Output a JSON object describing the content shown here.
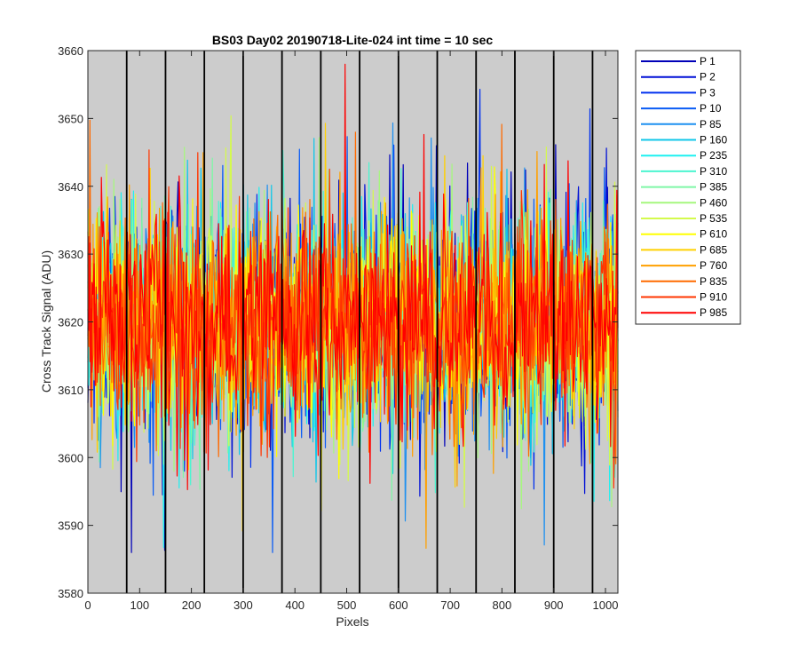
{
  "chart_data": {
    "type": "line",
    "title": "BS03 Day02 20190718-Lite-024 int time = 10 sec",
    "xlabel": "Pixels",
    "ylabel": "Cross Track Signal (ADU)",
    "xlim": [
      0,
      1024
    ],
    "ylim": [
      3580,
      3660
    ],
    "xticks": [
      0,
      100,
      200,
      300,
      400,
      500,
      600,
      700,
      800,
      900,
      1000
    ],
    "yticks": [
      3580,
      3590,
      3600,
      3610,
      3620,
      3630,
      3640,
      3650,
      3660
    ],
    "xtick_labels": [
      "0",
      "100",
      "200",
      "300",
      "400",
      "500",
      "600",
      "700",
      "800",
      "900",
      "1000"
    ],
    "ytick_labels": [
      "3580",
      "3590",
      "3600",
      "3610",
      "3620",
      "3630",
      "3640",
      "3650",
      "3660"
    ],
    "vertical_reference_lines_x": [
      75,
      150,
      225,
      300,
      375,
      450,
      525,
      600,
      675,
      750,
      825,
      900,
      975
    ],
    "background_color": "#cccccc",
    "legend_position": "outside-top-right",
    "signal_center": 3620,
    "signal_spread_typical": 8,
    "signal_extremes": [
      3586,
      3658
    ],
    "series": [
      {
        "name": "P 1",
        "color": "#0000b8"
      },
      {
        "name": "P 2",
        "color": "#0010d6"
      },
      {
        "name": "P 3",
        "color": "#0030ef"
      },
      {
        "name": "P 10",
        "color": "#0a5cf5"
      },
      {
        "name": "P 85",
        "color": "#1e90f0"
      },
      {
        "name": "P 160",
        "color": "#11c7e8"
      },
      {
        "name": "P 235",
        "color": "#1ef0f0"
      },
      {
        "name": "P 310",
        "color": "#4cf5d0"
      },
      {
        "name": "P 385",
        "color": "#7ff7a6"
      },
      {
        "name": "P 460",
        "color": "#a6f77f"
      },
      {
        "name": "P 535",
        "color": "#d4fa4d"
      },
      {
        "name": "P 610",
        "color": "#ffff00"
      },
      {
        "name": "P 685",
        "color": "#ffd000"
      },
      {
        "name": "P 760",
        "color": "#ffa000"
      },
      {
        "name": "P 835",
        "color": "#ff6a00"
      },
      {
        "name": "P 910",
        "color": "#ff3500"
      },
      {
        "name": "P 985",
        "color": "#ff0000"
      }
    ]
  }
}
